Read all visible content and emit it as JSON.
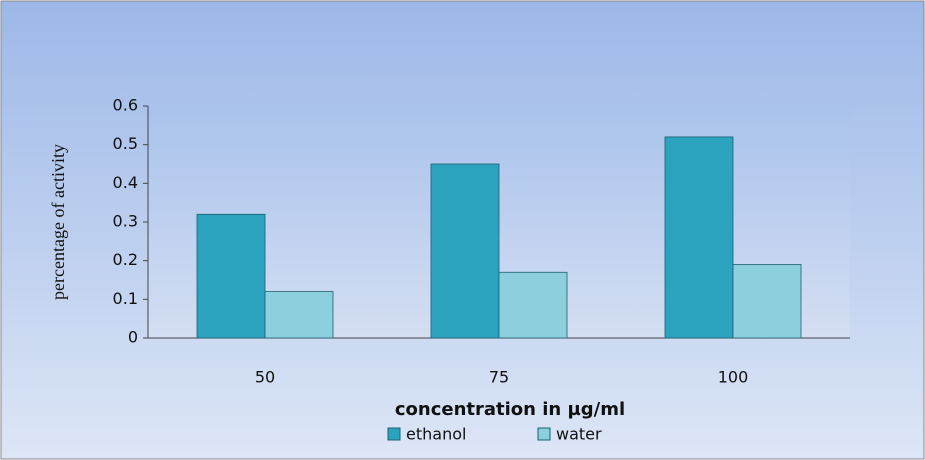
{
  "chart_data": {
    "type": "bar",
    "categories": [
      "50",
      "75",
      "100"
    ],
    "series": [
      {
        "name": "ethanol",
        "color": "#2ba3bf",
        "values": [
          0.32,
          0.45,
          0.52
        ]
      },
      {
        "name": "water",
        "color": "#8ccfdd",
        "values": [
          0.12,
          0.17,
          0.19
        ]
      }
    ],
    "x_label": "concentration in µg/ml",
    "y_label": "percentage of activity",
    "ylim": [
      0,
      0.6
    ],
    "yticks": [
      0,
      0.1,
      0.2,
      0.3,
      0.4,
      0.5,
      0.6
    ],
    "legend": "bottom"
  }
}
